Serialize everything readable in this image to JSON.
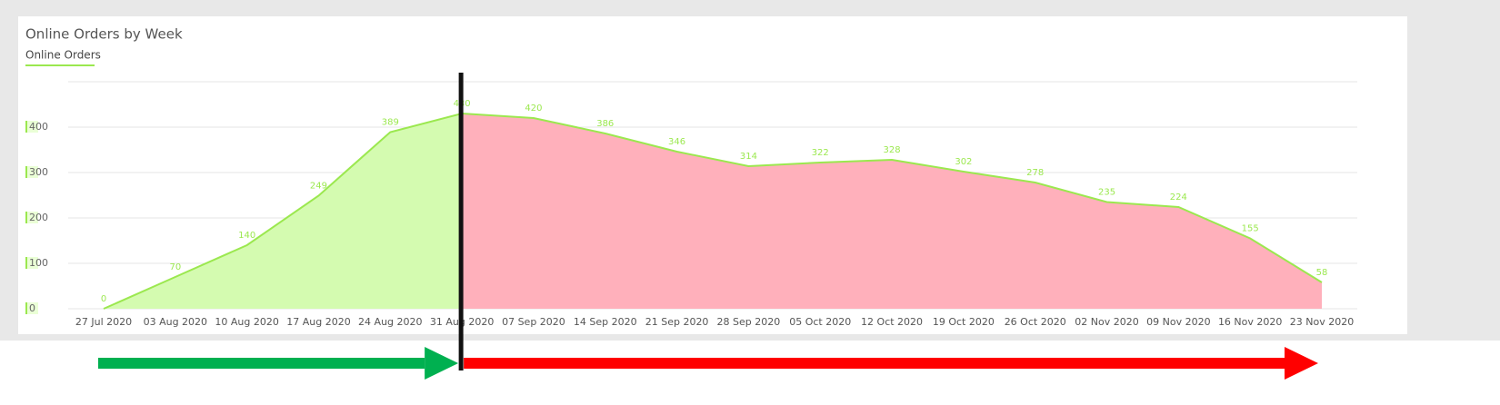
{
  "chart_data": {
    "type": "area",
    "title": "Online Orders by Week",
    "series": [
      {
        "name": "Online Orders",
        "color": "#9be84f",
        "values": [
          0,
          70,
          140,
          249,
          389,
          430,
          420,
          386,
          346,
          314,
          322,
          328,
          302,
          278,
          235,
          224,
          155,
          58
        ]
      }
    ],
    "categories": [
      "27 Jul 2020",
      "03 Aug 2020",
      "10 Aug 2020",
      "17 Aug 2020",
      "24 Aug 2020",
      "31 Aug 2020",
      "07 Sep 2020",
      "14 Sep 2020",
      "21 Sep 2020",
      "28 Sep 2020",
      "05 Oct 2020",
      "12 Oct 2020",
      "19 Oct 2020",
      "26 Oct 2020",
      "02 Nov 2020",
      "09 Nov 2020",
      "16 Nov 2020",
      "23 Nov 2020"
    ],
    "ylim": [
      0,
      500
    ],
    "yticks": [
      0,
      100,
      200,
      300,
      400
    ],
    "grid": true,
    "area_colors": [
      "#d4fbb0",
      "#ffb0bb"
    ]
  }
}
